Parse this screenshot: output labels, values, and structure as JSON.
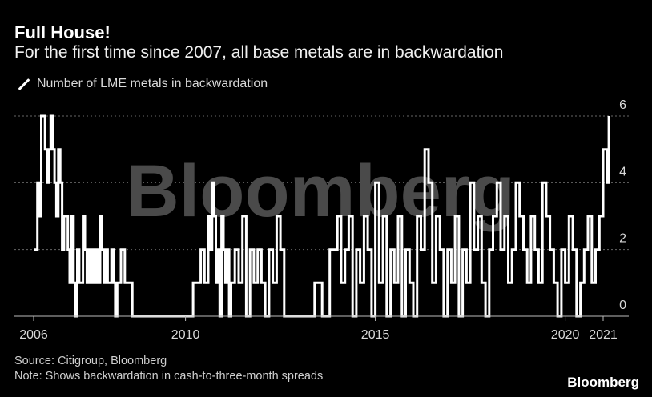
{
  "header": {
    "title": "Full House!",
    "subtitle": "For the first time since 2007, all base metals are in backwardation"
  },
  "legend": {
    "label": "Number of LME metals in backwardation"
  },
  "footer": {
    "source": "Source: Citigroup, Bloomberg",
    "note": "Note: Shows backwardation in cash-to-three-month spreads",
    "logo": "Bloomberg"
  },
  "watermark": "Bloomberg",
  "colors": {
    "background": "#000000",
    "series": "#ffffff",
    "grid": "#666666"
  },
  "chart_data": {
    "type": "line",
    "series": [
      {
        "name": "Number of LME metals in backwardation",
        "x": [
          2006.0,
          2006.1,
          2006.15,
          2006.2,
          2006.3,
          2006.35,
          2006.4,
          2006.45,
          2006.5,
          2006.55,
          2006.6,
          2006.65,
          2006.7,
          2006.75,
          2006.8,
          2006.9,
          2006.95,
          2007.0,
          2007.05,
          2007.1,
          2007.15,
          2007.2,
          2007.3,
          2007.35,
          2007.4,
          2007.45,
          2007.5,
          2007.55,
          2007.6,
          2007.65,
          2007.7,
          2007.75,
          2007.8,
          2007.85,
          2007.9,
          2007.95,
          2008.0,
          2008.05,
          2008.1,
          2008.15,
          2008.2,
          2008.3,
          2008.4,
          2008.5,
          2008.6,
          2008.7,
          2008.8,
          2008.9,
          2009.0,
          2009.1,
          2009.2,
          2009.3,
          2009.4,
          2009.5,
          2009.6,
          2009.7,
          2009.8,
          2009.9,
          2010.0,
          2010.2,
          2010.4,
          2010.5,
          2010.6,
          2010.65,
          2010.7,
          2010.75,
          2010.8,
          2010.85,
          2010.9,
          2010.95,
          2011.0,
          2011.05,
          2011.1,
          2011.15,
          2011.2,
          2011.3,
          2011.4,
          2011.5,
          2011.6,
          2011.7,
          2011.8,
          2011.9,
          2012.0,
          2012.1,
          2012.2,
          2012.3,
          2012.4,
          2012.5,
          2012.6,
          2012.7,
          2012.8,
          2012.9,
          2013.0,
          2013.2,
          2013.4,
          2013.6,
          2013.8,
          2014.0,
          2014.1,
          2014.2,
          2014.3,
          2014.4,
          2014.5,
          2014.6,
          2014.7,
          2014.8,
          2014.9,
          2015.0,
          2015.1,
          2015.2,
          2015.3,
          2015.4,
          2015.5,
          2015.6,
          2015.7,
          2015.8,
          2015.9,
          2016.0,
          2016.1,
          2016.2,
          2016.3,
          2016.4,
          2016.5,
          2016.6,
          2016.7,
          2016.8,
          2016.9,
          2017.0,
          2017.1,
          2017.2,
          2017.3,
          2017.4,
          2017.5,
          2017.6,
          2017.7,
          2017.8,
          2017.9,
          2018.0,
          2018.1,
          2018.2,
          2018.3,
          2018.4,
          2018.5,
          2018.6,
          2018.7,
          2018.8,
          2018.9,
          2019.0,
          2019.1,
          2019.2,
          2019.3,
          2019.4,
          2019.5,
          2019.6,
          2019.7,
          2019.8,
          2019.9,
          2020.0,
          2020.1,
          2020.2,
          2020.3,
          2020.4,
          2020.5,
          2020.6,
          2020.7,
          2020.8,
          2020.9,
          2021.0,
          2021.1,
          2021.15
        ],
        "y": [
          2,
          4,
          3,
          6,
          5,
          4,
          5,
          6,
          5,
          4,
          3,
          5,
          4,
          2,
          3,
          2,
          1,
          3,
          1,
          0,
          2,
          1,
          3,
          2,
          1,
          2,
          1,
          2,
          1,
          2,
          1,
          3,
          2,
          1,
          2,
          1,
          1,
          2,
          1,
          0,
          1,
          2,
          1,
          1,
          0,
          0,
          0,
          0,
          0,
          0,
          0,
          0,
          0,
          0,
          0,
          0,
          0,
          0,
          0,
          1,
          2,
          1,
          3,
          2,
          4,
          3,
          1,
          2,
          0,
          3,
          2,
          1,
          2,
          0,
          1,
          2,
          1,
          3,
          0,
          2,
          1,
          2,
          1,
          0,
          2,
          1,
          3,
          2,
          0,
          0,
          0,
          0,
          0,
          0,
          1,
          0,
          2,
          3,
          1,
          2,
          3,
          0,
          2,
          1,
          3,
          2,
          0,
          4,
          1,
          3,
          0,
          2,
          1,
          3,
          0,
          2,
          1,
          0,
          3,
          2,
          5,
          4,
          1,
          3,
          2,
          0,
          2,
          1,
          3,
          0,
          2,
          1,
          4,
          2,
          3,
          1,
          0,
          2,
          3,
          4,
          2,
          3,
          1,
          2,
          4,
          3,
          2,
          1,
          3,
          2,
          1,
          4,
          3,
          2,
          1,
          0,
          2,
          1,
          3,
          2,
          0,
          1,
          2,
          3,
          1,
          2,
          3,
          5,
          4,
          6
        ]
      }
    ],
    "x_ticks": [
      "2006",
      "2010",
      "2015",
      "2020",
      "2021"
    ],
    "x_tick_values": [
      2006,
      2010,
      2015,
      2020,
      2021
    ],
    "y_ticks": [
      "0",
      "2",
      "4",
      "6"
    ],
    "y_tick_values": [
      0,
      2,
      4,
      6
    ],
    "xlim": [
      2006,
      2021.15
    ],
    "ylim": [
      0,
      6
    ],
    "grid": true,
    "y_axis_side": "right"
  }
}
